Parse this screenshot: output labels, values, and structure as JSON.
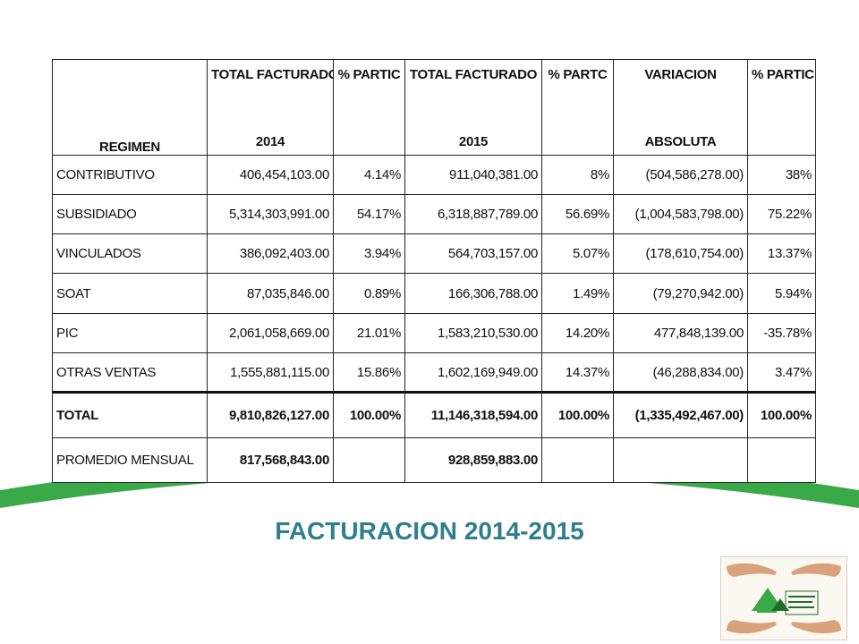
{
  "title": "FACTURACION 2014-2015",
  "colors": {
    "green": "#3aaa48",
    "title": "#2e7f8e"
  },
  "table": {
    "header": {
      "regimen": "REGIMEN",
      "cols": [
        {
          "line1": "TOTAL FACTURADO",
          "line2": "2014"
        },
        {
          "line1": "% PARTIC",
          "line2": ""
        },
        {
          "line1": "TOTAL FACTURADO",
          "line2": "2015"
        },
        {
          "line1": "% PARTC",
          "line2": ""
        },
        {
          "line1": "VARIACION",
          "line2": "ABSOLUTA"
        },
        {
          "line1": "% PARTIC",
          "line2": ""
        }
      ]
    },
    "rows": [
      {
        "label": "CONTRIBUTIVO",
        "c1": "406,454,103.00",
        "c2": "4.14%",
        "c3": "911,040,381.00",
        "c4": "8%",
        "c5": "(504,586,278.00)",
        "c6": "38%"
      },
      {
        "label": "SUBSIDIADO",
        "c1": "5,314,303,991.00",
        "c2": "54.17%",
        "c3": "6,318,887,789.00",
        "c4": "56.69%",
        "c5": "(1,004,583,798.00)",
        "c6": "75.22%"
      },
      {
        "label": "VINCULADOS",
        "c1": "386,092,403.00",
        "c2": "3.94%",
        "c3": "564,703,157.00",
        "c4": "5.07%",
        "c5": "(178,610,754.00)",
        "c6": "13.37%"
      },
      {
        "label": "SOAT",
        "c1": "87,035,846.00",
        "c2": "0.89%",
        "c3": "166,306,788.00",
        "c4": "1.49%",
        "c5": "(79,270,942.00)",
        "c6": "5.94%"
      },
      {
        "label": "PIC",
        "c1": "2,061,058,669.00",
        "c2": "21.01%",
        "c3": "1,583,210,530.00",
        "c4": "14.20%",
        "c5": "477,848,139.00",
        "c6": "-35.78%"
      },
      {
        "label": "OTRAS VENTAS",
        "c1": "1,555,881,115.00",
        "c2": "15.86%",
        "c3": "1,602,169,949.00",
        "c4": "14.37%",
        "c5": "(46,288,834.00)",
        "c6": "3.47%"
      }
    ],
    "total": {
      "label": "TOTAL",
      "c1": "9,810,826,127.00",
      "c2": "100.00%",
      "c3": "11,146,318,594.00",
      "c4": "100.00%",
      "c5": "(1,335,492,467.00)",
      "c6": "100.00%"
    },
    "promedio": {
      "label": "PROMEDIO MENSUAL",
      "c1": "817,568,843.00",
      "c2": "",
      "c3": "928,859,883.00",
      "c4": "",
      "c5": "",
      "c6": ""
    }
  }
}
